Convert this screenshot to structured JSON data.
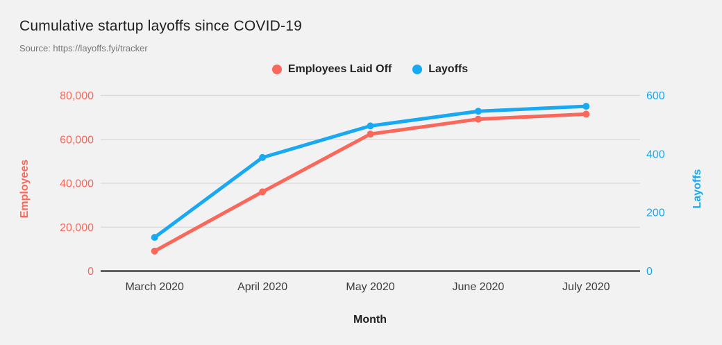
{
  "header": {
    "title": "Cumulative startup layoffs since COVID-19",
    "source": "Source: https://layoffs.fyi/tracker"
  },
  "legend": [
    {
      "label": "Employees Laid Off",
      "color": "#F9685A"
    },
    {
      "label": "Layoffs",
      "color": "#19A9F2"
    }
  ],
  "colors": {
    "background": "#F2F2F2",
    "gridline": "#D8D8D8",
    "axis_line": "#424242",
    "tick_text": "#3C3C3C",
    "employees_series": "#F9685A",
    "layoffs_series": "#19A9F2"
  },
  "chart_data": {
    "type": "line",
    "title": "Cumulative startup layoffs since COVID-19",
    "xlabel": "Month",
    "categories": [
      "March 2020",
      "April 2020",
      "May 2020",
      "June 2020",
      "July 2020"
    ],
    "series": [
      {
        "name": "Employees Laid Off",
        "axis": "left",
        "color": "#F9685A",
        "values": [
          9100,
          36100,
          62400,
          69200,
          71500
        ]
      },
      {
        "name": "Layoffs",
        "axis": "right",
        "color": "#19A9F2",
        "values": [
          115,
          388,
          496,
          546,
          563
        ]
      }
    ],
    "left_axis": {
      "label": "Employees",
      "color": "#F9685A",
      "min": 0,
      "max": 80000,
      "ticks": [
        0,
        20000,
        40000,
        60000,
        80000
      ],
      "tick_labels": [
        "0",
        "20,000",
        "40,000",
        "60,000",
        "80,000"
      ]
    },
    "right_axis": {
      "label": "Layoffs",
      "color": "#19A9F2",
      "min": 0,
      "max": 600,
      "ticks": [
        0,
        200,
        400,
        600
      ],
      "tick_labels": [
        "0",
        "200",
        "400",
        "600"
      ]
    },
    "grid": true,
    "legend_position": "top"
  }
}
